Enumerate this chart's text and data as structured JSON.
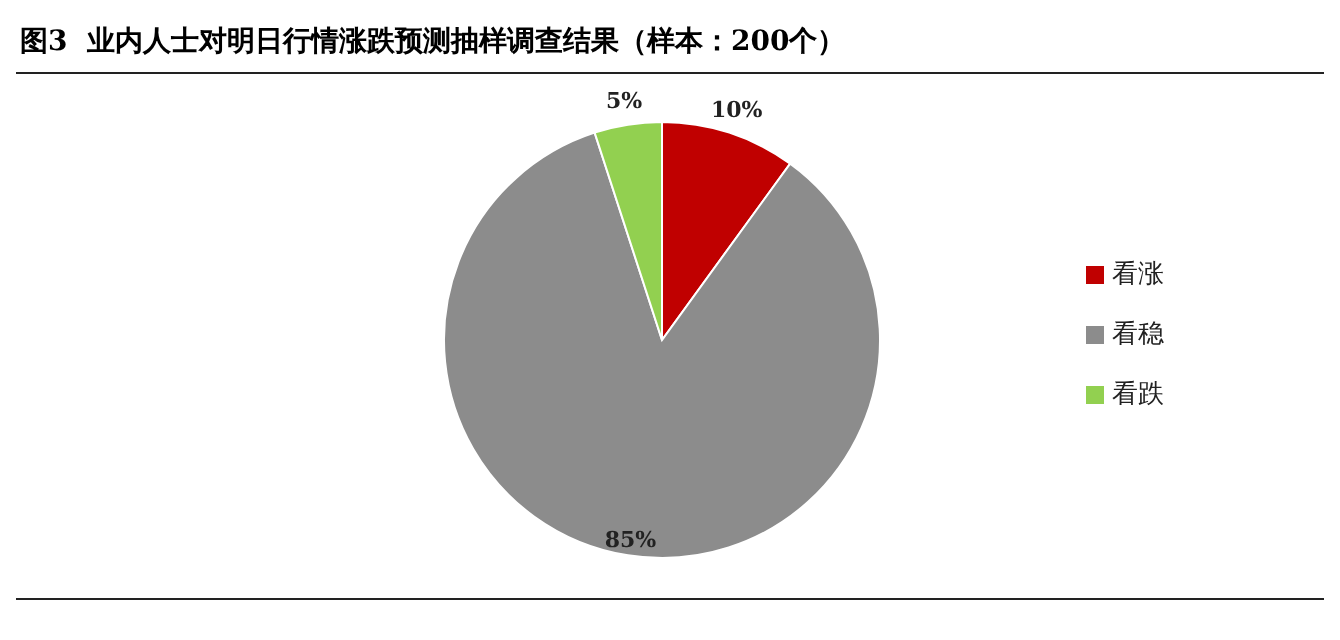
{
  "chart_data": {
    "type": "pie",
    "title": "图3  业内人士对明日行情涨跌预测抽样调查结果（样本：200个）",
    "categories": [
      "看涨",
      "看稳",
      "看跌"
    ],
    "values": [
      10,
      85,
      5
    ],
    "colors": [
      "#c00000",
      "#8c8c8c",
      "#92d050"
    ],
    "value_labels": [
      "10%",
      "85%",
      "5%"
    ],
    "legend": "right"
  }
}
